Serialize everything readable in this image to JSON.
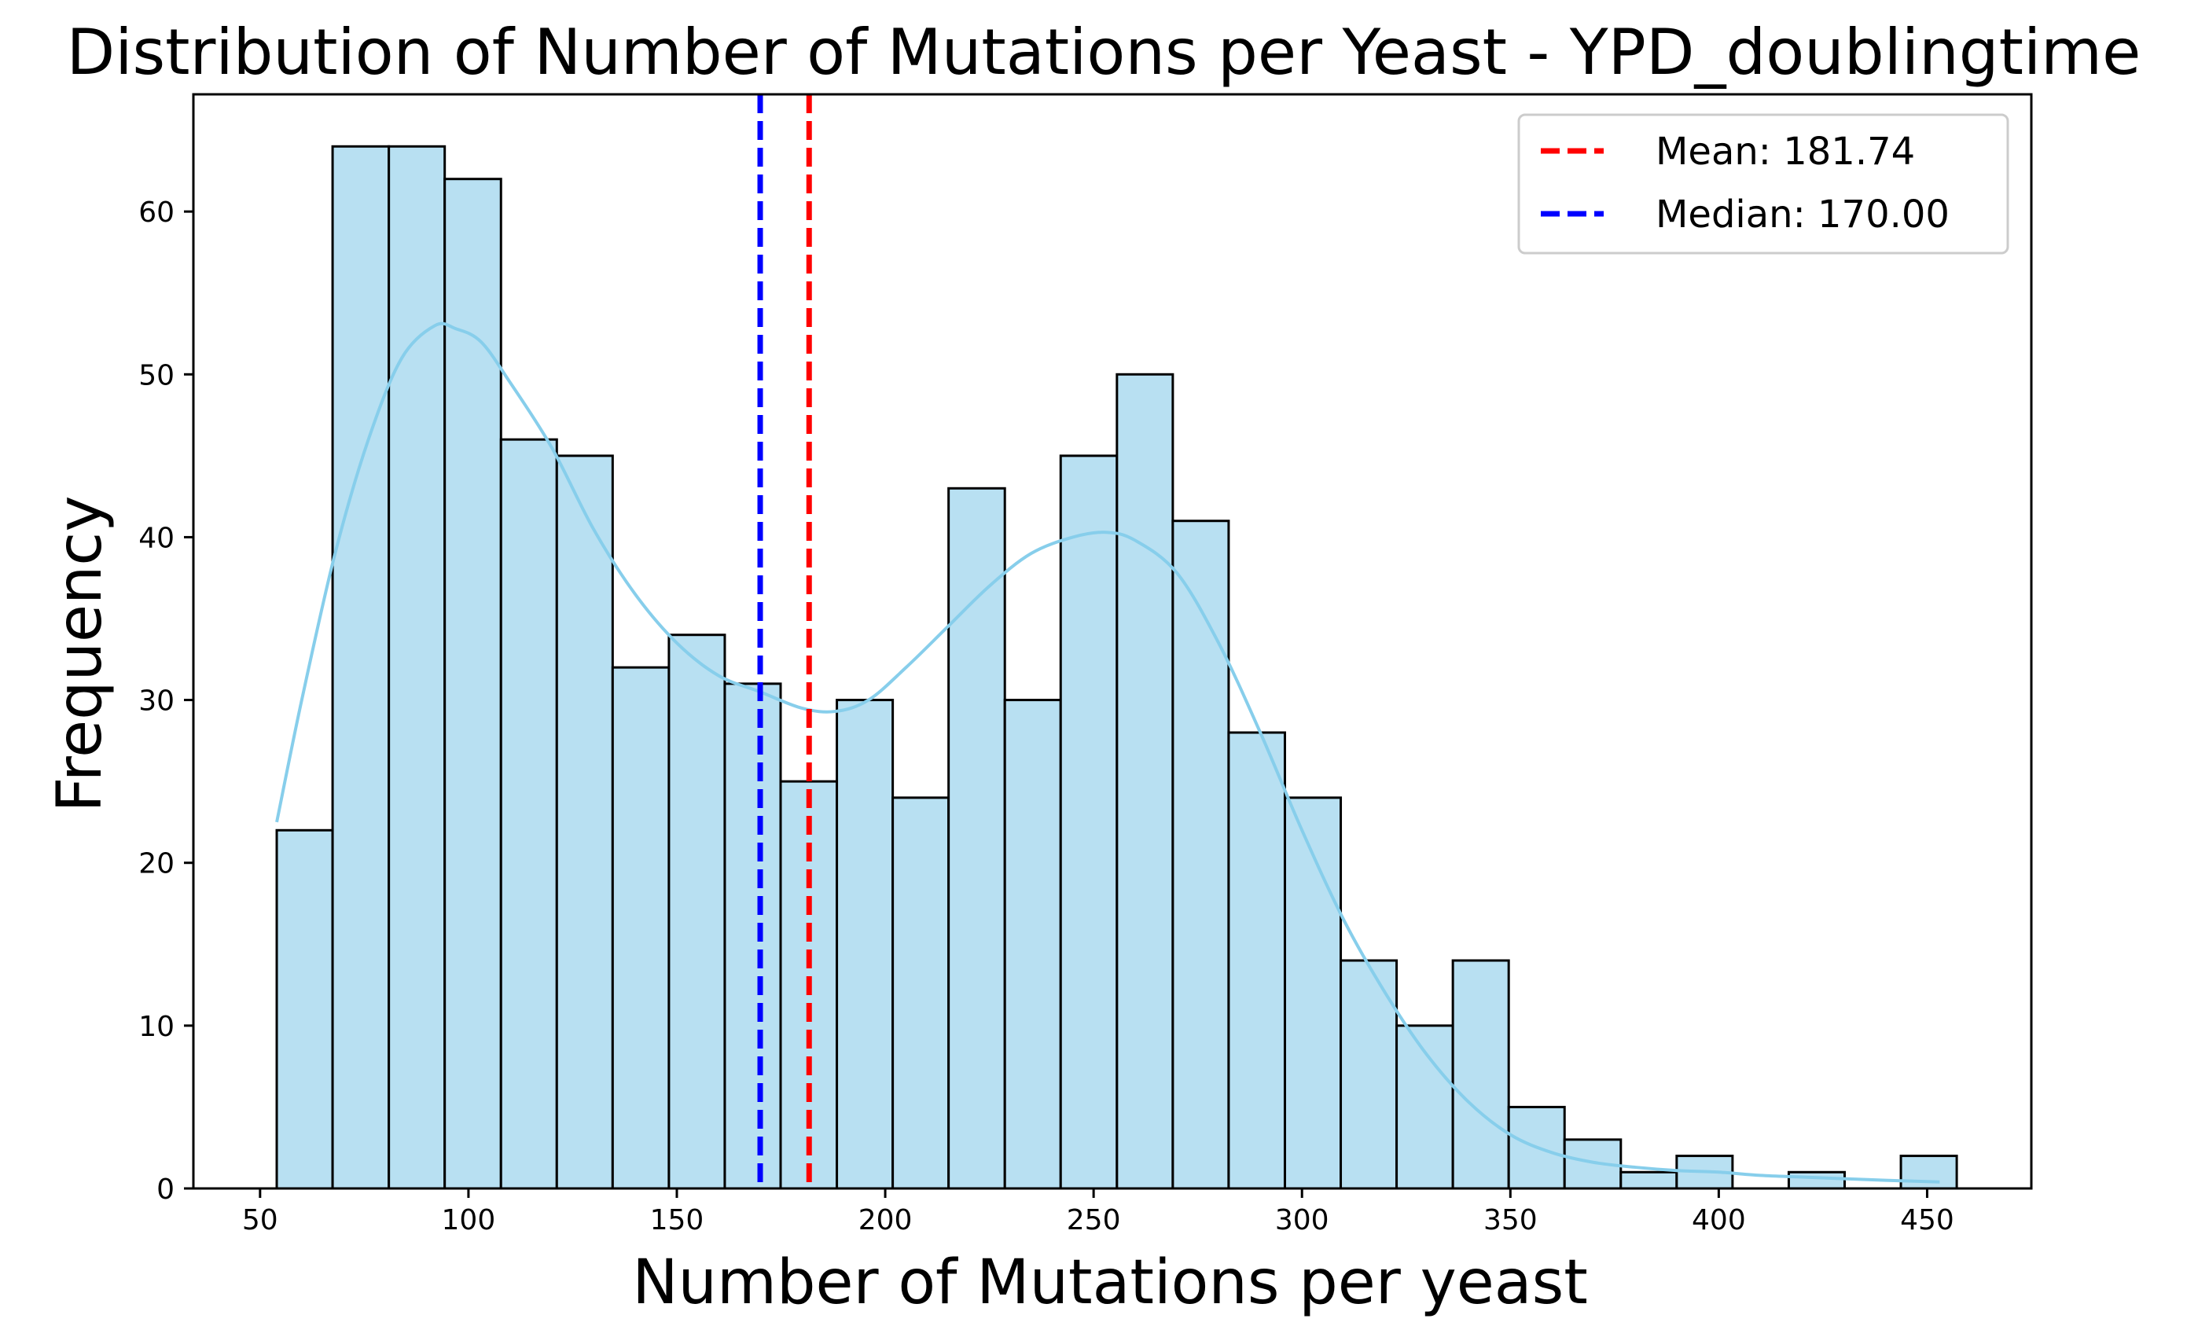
{
  "chart_data": {
    "type": "bar",
    "title": "Distribution of Number of Mutations per Yeast - YPD_doublingtime",
    "xlabel": "Number of Mutations per yeast",
    "ylabel": "Frequency",
    "xlim": [
      34,
      475
    ],
    "ylim": [
      0,
      67.2
    ],
    "bin_edges": [
      54,
      67.4,
      80.9,
      94.3,
      107.8,
      121.2,
      134.6,
      148.1,
      161.5,
      174.9,
      188.4,
      201.8,
      215.2,
      228.7,
      242.1,
      255.6,
      269.0,
      282.4,
      295.9,
      309.3,
      322.7,
      336.2,
      349.6,
      363.0,
      376.5,
      389.9,
      403.3,
      416.8,
      430.2,
      443.7,
      457.1
    ],
    "counts": [
      22,
      64,
      64,
      62,
      46,
      45,
      32,
      34,
      31,
      25,
      30,
      24,
      43,
      30,
      45,
      50,
      41,
      28,
      24,
      14,
      10,
      14,
      5,
      3,
      1,
      2,
      0,
      1,
      0,
      2
    ],
    "kde": {
      "x": [
        54,
        60,
        68,
        76,
        84,
        92,
        97,
        103,
        110,
        120,
        130,
        140,
        150,
        160,
        170,
        180,
        188,
        196,
        205,
        215,
        225,
        235,
        245,
        253,
        260,
        270,
        280,
        290,
        300,
        310,
        320,
        330,
        340,
        350,
        360,
        370,
        380,
        390,
        400,
        410,
        420,
        430,
        440,
        453
      ],
      "y": [
        22.5,
        30,
        39,
        46,
        51,
        53,
        52.8,
        52,
        49.5,
        45.5,
        40.5,
        36.5,
        33.5,
        31.5,
        30.5,
        29.5,
        29.3,
        30,
        32,
        34.5,
        37,
        39,
        40,
        40.3,
        39.8,
        37.8,
        33.5,
        28,
        22,
        16.5,
        12,
        8.2,
        5.3,
        3.3,
        2.2,
        1.6,
        1.3,
        1.1,
        1.0,
        0.8,
        0.7,
        0.6,
        0.5,
        0.4
      ]
    },
    "xticks": [
      50,
      100,
      150,
      200,
      250,
      300,
      350,
      400,
      450
    ],
    "yticks": [
      0,
      10,
      20,
      30,
      40,
      50,
      60
    ],
    "reference_lines": [
      {
        "name": "Mean: 181.74",
        "value": 181.74,
        "color": "#ff0000"
      },
      {
        "name": "Median: 170.00",
        "value": 170.0,
        "color": "#0000ff"
      }
    ],
    "legend_position": "top-right",
    "bar_fill": "#b8e0f2",
    "bar_edge": "#000000",
    "kde_color": "#87ceeb",
    "grid": false
  }
}
